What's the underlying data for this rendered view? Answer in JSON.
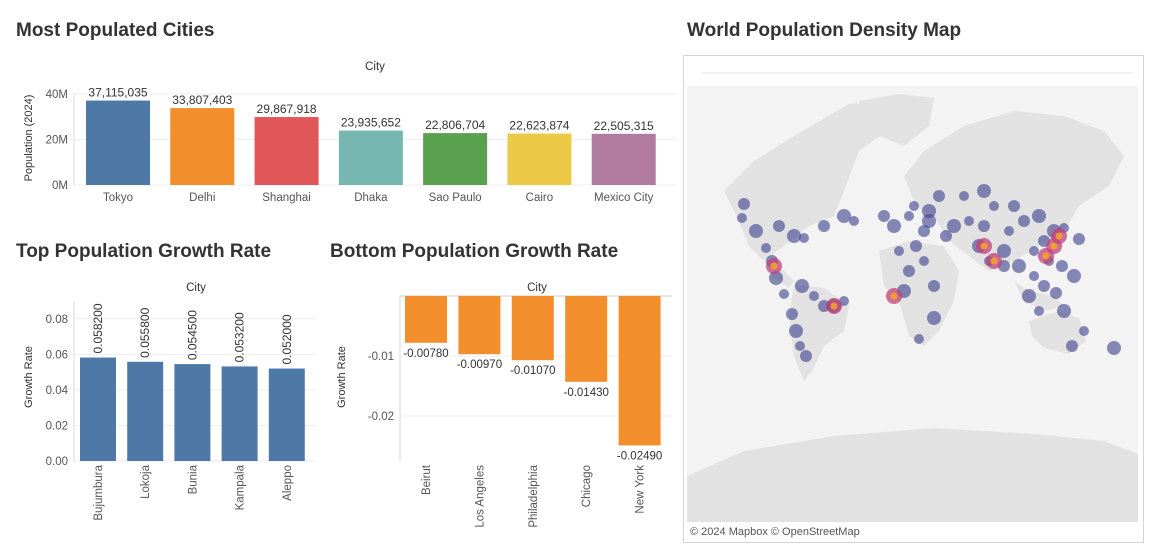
{
  "titles": {
    "most_populated": "Most Populated Cities",
    "top_growth": "Top Population Growth Rate",
    "bottom_growth": "Bottom Population Growth Rate",
    "map": "World Population Density Map"
  },
  "map": {
    "credit": "© 2024 Mapbox © OpenStreetMap"
  },
  "colors": {
    "palette": [
      "#4e79a7",
      "#f28e2b",
      "#e15759",
      "#76b7b2",
      "#59a14f",
      "#edc948",
      "#b07aa1"
    ],
    "top_growth_bar": "#4e79a7",
    "bottom_growth_bar": "#f28e2b"
  },
  "chart_data": [
    {
      "id": "most_populated",
      "type": "bar",
      "column_header": "City",
      "ylabel": "Population (2024)",
      "ylim": [
        0,
        40000000
      ],
      "yticks": [
        {
          "value": 0,
          "label": "0M"
        },
        {
          "value": 20000000,
          "label": "20M"
        },
        {
          "value": 40000000,
          "label": "40M"
        }
      ],
      "categories": [
        "Tokyo",
        "Delhi",
        "Shanghai",
        "Dhaka",
        "Sao Paulo",
        "Cairo",
        "Mexico City"
      ],
      "values": [
        37115035,
        33807403,
        29867918,
        23935652,
        22806704,
        22623874,
        22505315
      ],
      "data_labels": [
        "37,115,035",
        "33,807,403",
        "29,867,918",
        "23,935,652",
        "22,806,704",
        "22,623,874",
        "22,505,315"
      ]
    },
    {
      "id": "top_growth",
      "type": "bar",
      "column_header": "City",
      "ylabel": "Growth Rate",
      "ylim": [
        0,
        0.09
      ],
      "yticks": [
        {
          "value": 0,
          "label": "0.00"
        },
        {
          "value": 0.02,
          "label": "0.02"
        },
        {
          "value": 0.04,
          "label": "0.04"
        },
        {
          "value": 0.06,
          "label": "0.06"
        },
        {
          "value": 0.08,
          "label": "0.08"
        }
      ],
      "categories": [
        "Bujumbura",
        "Lokoja",
        "Bunia",
        "Kampala",
        "Aleppo"
      ],
      "values": [
        0.0582,
        0.0558,
        0.0545,
        0.0532,
        0.052
      ],
      "data_labels": [
        "0.058200",
        "0.055800",
        "0.054500",
        "0.053200",
        "0.052000"
      ]
    },
    {
      "id": "bottom_growth",
      "type": "bar",
      "column_header": "City",
      "ylabel": "Growth Rate",
      "ylim": [
        -0.0275,
        0
      ],
      "yticks": [
        {
          "value": -0.01,
          "label": "-0.01"
        },
        {
          "value": -0.02,
          "label": "-0.02"
        }
      ],
      "categories": [
        "Beirut",
        "Los Angeles",
        "Philadelphia",
        "Chicago",
        "New York"
      ],
      "values": [
        -0.0078,
        -0.0097,
        -0.0107,
        -0.0143,
        -0.0249
      ],
      "data_labels": [
        "-0.00780",
        "-0.00970",
        "-0.01070",
        "-0.01430",
        "-0.02490"
      ]
    }
  ]
}
